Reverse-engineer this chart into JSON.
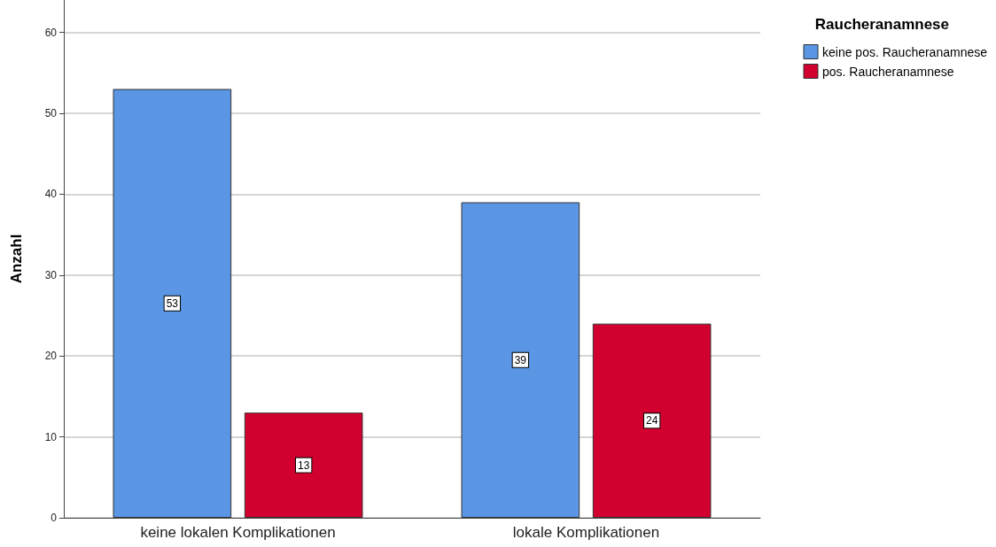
{
  "chart_data": {
    "type": "bar",
    "ylabel": "Anzahl",
    "legend_title": "Raucheranamnese",
    "categories": [
      "keine lokalen Komplikationen",
      "lokale Komplikationen"
    ],
    "series": [
      {
        "name": "keine pos. Raucheranamnese",
        "color": "#5a96e3",
        "values": [
          53,
          39
        ]
      },
      {
        "name": "pos. Raucheranamnese",
        "color": "#d2002e",
        "values": [
          13,
          24
        ]
      }
    ],
    "ylim": [
      0,
      64
    ],
    "yticks": [
      0,
      10,
      20,
      30,
      40,
      50,
      60
    ],
    "grid": "y",
    "legend": "top right",
    "data_labels": true
  }
}
